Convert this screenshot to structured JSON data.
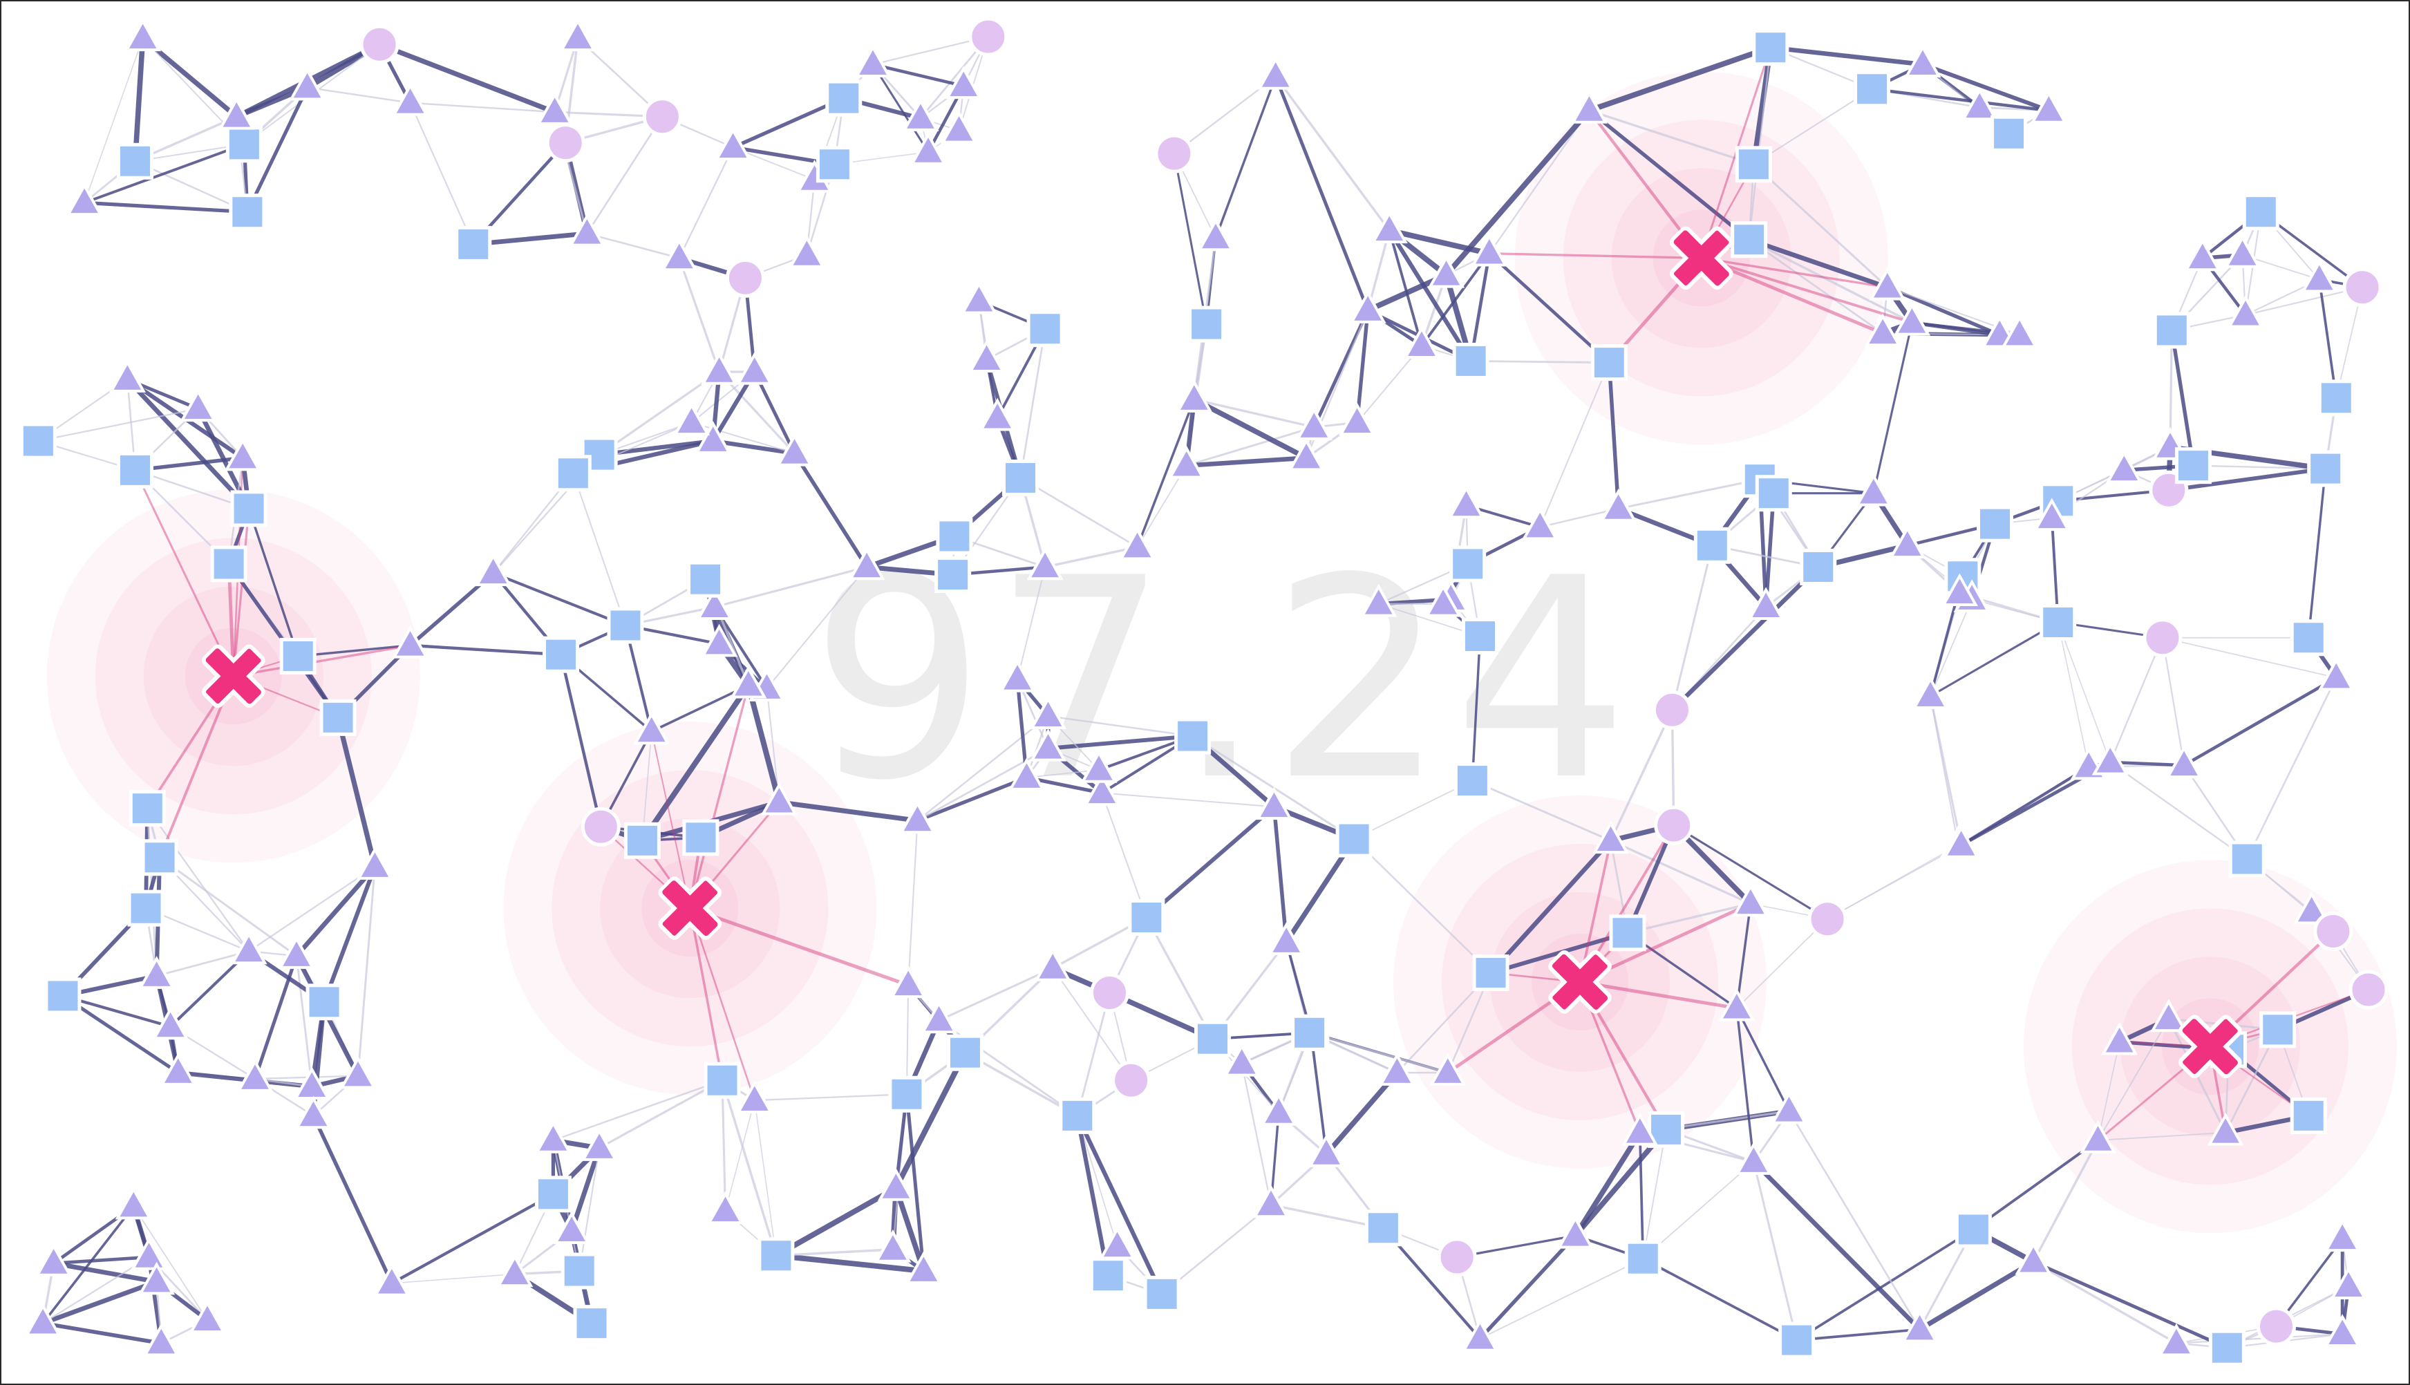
{
  "board": {
    "score_text": "97.24",
    "colors": {
      "background": "#ffffff",
      "border": "#2a2a2a",
      "edge_strong": "#4a4a86",
      "edge_weak": "#c8c8dc",
      "edge_target": "#d4347a",
      "square_fill": "#9dc3f7",
      "circle_fill": "#e2c3f2",
      "triangle_fill": "#b3a8ee",
      "node_outline": "#ffffff",
      "target_marker": "#f0317f",
      "target_halo": "#f9c7da",
      "score": "#ececec"
    },
    "legend": {
      "target_marker": "x-mark",
      "node_types": [
        "square",
        "circle",
        "triangle"
      ]
    }
  }
}
